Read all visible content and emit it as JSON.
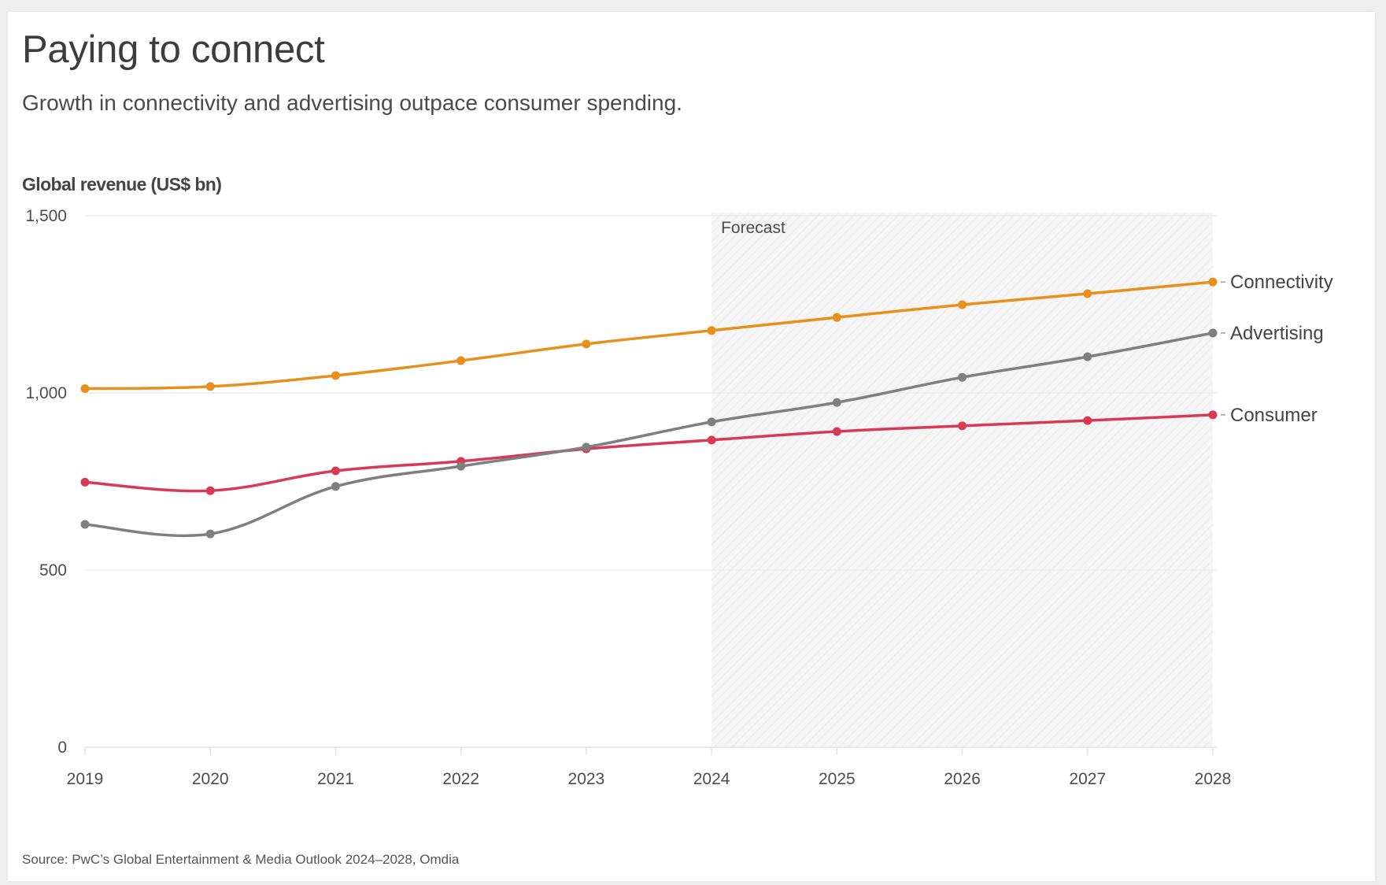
{
  "header": {
    "title": "Paying to connect",
    "subtitle": "Growth in connectivity and advertising outpace consumer spending."
  },
  "footer": {
    "source": "Source: PwC’s Global Entertainment & Media Outlook 2024–2028, Omdia"
  },
  "chart_data": {
    "type": "line",
    "title": "Paying to connect",
    "subtitle": "Growth in connectivity and advertising outpace consumer spending.",
    "xlabel": "",
    "ylabel": "Global revenue (US$ bn)",
    "x": [
      "2019",
      "2020",
      "2021",
      "2022",
      "2023",
      "2024",
      "2025",
      "2026",
      "2027",
      "2028"
    ],
    "ylim": [
      0,
      1500
    ],
    "yticks": [
      0,
      500,
      1000,
      1500
    ],
    "ytick_labels": [
      "0",
      "500",
      "1,000",
      "1,500"
    ],
    "grid": true,
    "legend": "direct-labels-right",
    "annotations": [
      {
        "text": "Forecast",
        "x_start": "2024",
        "x_end": "2028",
        "style": "shaded-region"
      }
    ],
    "series": [
      {
        "name": "Connectivity",
        "color": "#e8901c",
        "values": [
          1012,
          1018,
          1049,
          1091,
          1138,
          1176,
          1213,
          1249,
          1280,
          1313
        ]
      },
      {
        "name": "Advertising",
        "color": "#7f7f7f",
        "values": [
          629,
          602,
          736,
          793,
          847,
          918,
          973,
          1044,
          1102,
          1169
        ]
      },
      {
        "name": "Consumer",
        "color": "#d93954",
        "values": [
          748,
          724,
          780,
          807,
          842,
          867,
          891,
          907,
          922,
          938
        ]
      }
    ]
  }
}
